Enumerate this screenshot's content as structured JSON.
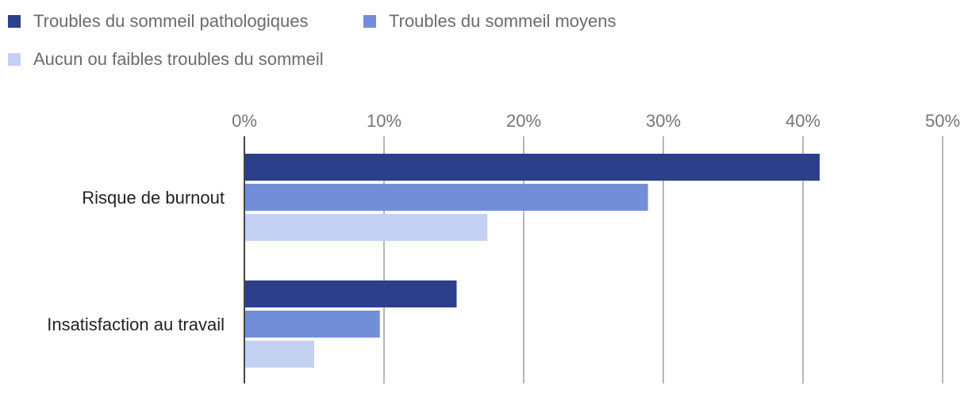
{
  "chart_data": {
    "type": "bar",
    "orientation": "horizontal",
    "categories": [
      "Risque de burnout",
      "Insatisfaction au travail"
    ],
    "series": [
      {
        "name": "Troubles du sommeil pathologiques",
        "color": "#2b3f8b",
        "values": [
          41.2,
          15.2
        ]
      },
      {
        "name": "Troubles du sommeil moyens",
        "color": "#728ed9",
        "values": [
          28.9,
          9.7
        ]
      },
      {
        "name": "Aucun ou faibles troubles du sommeil",
        "color": "#c4d0f2",
        "values": [
          17.4,
          5.0
        ]
      }
    ],
    "xticks": [
      "0%",
      "10%",
      "20%",
      "30%",
      "40%",
      "50%"
    ],
    "xlim": [
      0,
      50
    ],
    "legend_position": "top-left",
    "grid": true
  }
}
